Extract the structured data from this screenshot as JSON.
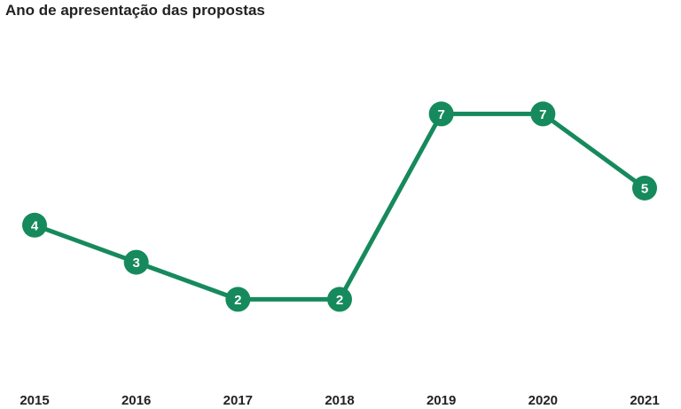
{
  "chart_data": {
    "type": "line",
    "title": "Ano de apresentação das propostas",
    "xlabel": "",
    "ylabel": "",
    "categories": [
      "2015",
      "2016",
      "2017",
      "2018",
      "2019",
      "2020",
      "2021"
    ],
    "series": [
      {
        "values": [
          4,
          3,
          2,
          2,
          7,
          7,
          5
        ]
      }
    ],
    "ylim": [
      0,
      9
    ],
    "grid": false,
    "legend": "none",
    "color": "#168a5c"
  }
}
